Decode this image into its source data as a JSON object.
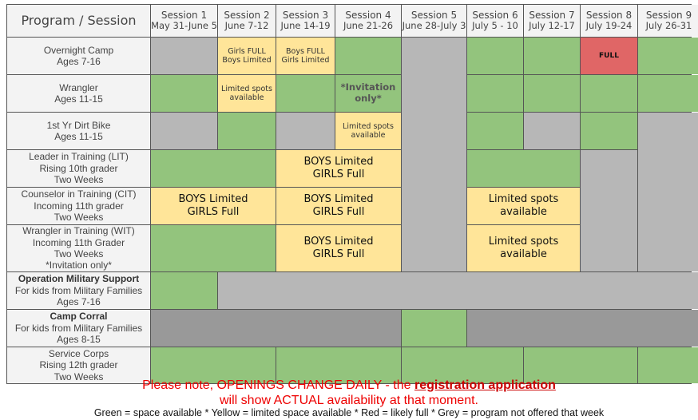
{
  "header": {
    "corner": "Program / Session",
    "sessions": [
      {
        "name": "Session 1",
        "dates": "May 31-June 5"
      },
      {
        "name": "Session 2",
        "dates": "June 7-12"
      },
      {
        "name": "Session 3",
        "dates": "June 14-19"
      },
      {
        "name": "Session 4",
        "dates": "June 21-26"
      },
      {
        "name": "Session 5",
        "dates": "June 28-July 3"
      },
      {
        "name": "Session 6",
        "dates": "July 5 - 10"
      },
      {
        "name": "Session 7",
        "dates": "July 12-17"
      },
      {
        "name": "Session 8",
        "dates": "July 19-24"
      },
      {
        "name": "Session 9",
        "dates": "July 26-31"
      }
    ]
  },
  "programs": [
    {
      "title": "Overnight Camp",
      "lines": [
        "Ages 7-16"
      ]
    },
    {
      "title": "Wrangler",
      "lines": [
        "Ages 11-15"
      ]
    },
    {
      "title": "1st Yr Dirt Bike",
      "lines": [
        "Ages 11-15"
      ]
    },
    {
      "title": "Leader in Training (LIT)",
      "lines": [
        "Rising 10th grader",
        "Two Weeks"
      ]
    },
    {
      "title": "Counselor in Training (CIT)",
      "lines": [
        "Incoming 11th grader",
        "Two Weeks"
      ]
    },
    {
      "title": "Wrangler in Training (WIT)",
      "lines": [
        "Incoming 11th Grader",
        "Two Weeks",
        "*Invitation only*"
      ]
    },
    {
      "title": "Operation Military Support",
      "bold": true,
      "lines": [
        "For kids from Military Families",
        "Ages 7-16"
      ]
    },
    {
      "title": "Camp Corral",
      "bold": true,
      "lines": [
        "For kids from Military Families",
        "Ages 8-15"
      ]
    },
    {
      "title": "Service Corps",
      "lines": [
        "Rising 12th grader",
        "Two Weeks"
      ]
    }
  ],
  "colors": {
    "green": "#93c47d",
    "yellow": "#ffe599",
    "red": "#e06666",
    "grey": "#b7b7b7",
    "dark_grey": "#999999"
  },
  "cells": [
    {
      "row": 1,
      "col": 1,
      "status": "grey"
    },
    {
      "row": 1,
      "col": 2,
      "status": "yellow",
      "style": "sm",
      "lines": [
        "Girls FULL",
        "Boys Limited"
      ]
    },
    {
      "row": 1,
      "col": 3,
      "status": "yellow",
      "style": "sm",
      "lines": [
        "Boys FULL",
        "Girls Limited"
      ]
    },
    {
      "row": 1,
      "col": 4,
      "status": "green"
    },
    {
      "row": 1,
      "col": 5,
      "rowspan": 6,
      "status": "grey"
    },
    {
      "row": 1,
      "col": 6,
      "status": "green"
    },
    {
      "row": 1,
      "col": 7,
      "status": "green"
    },
    {
      "row": 1,
      "col": 8,
      "status": "red",
      "style": "full",
      "lines": [
        "FULL"
      ]
    },
    {
      "row": 1,
      "col": 9,
      "status": "green"
    },
    {
      "row": 2,
      "col": 1,
      "status": "green"
    },
    {
      "row": 2,
      "col": 2,
      "status": "yellow",
      "style": "sm",
      "lines": [
        "Limited spots",
        "available"
      ]
    },
    {
      "row": 2,
      "col": 3,
      "status": "green"
    },
    {
      "row": 2,
      "col": 4,
      "status": "green",
      "style": "bold",
      "lines": [
        "*Invitation",
        "only*"
      ]
    },
    {
      "row": 2,
      "col": 6,
      "status": "green"
    },
    {
      "row": 2,
      "col": 7,
      "status": "green"
    },
    {
      "row": 2,
      "col": 8,
      "status": "green"
    },
    {
      "row": 2,
      "col": 9,
      "status": "green"
    },
    {
      "row": 3,
      "col": 1,
      "status": "grey"
    },
    {
      "row": 3,
      "col": 2,
      "status": "green"
    },
    {
      "row": 3,
      "col": 3,
      "status": "grey"
    },
    {
      "row": 3,
      "col": 4,
      "status": "yellow",
      "style": "sm",
      "lines": [
        "Limited spots",
        "available"
      ]
    },
    {
      "row": 3,
      "col": 6,
      "status": "green"
    },
    {
      "row": 3,
      "col": 7,
      "status": "grey"
    },
    {
      "row": 3,
      "col": 8,
      "status": "green"
    },
    {
      "row": 3,
      "col": 9,
      "rowspan": 4,
      "status": "grey"
    },
    {
      "row": 4,
      "col": 1,
      "colspan": 2,
      "status": "green"
    },
    {
      "row": 4,
      "col": 3,
      "colspan": 2,
      "status": "yellow",
      "style": "big",
      "lines": [
        "BOYS Limited",
        "GIRLS Full"
      ]
    },
    {
      "row": 4,
      "col": 6,
      "colspan": 2,
      "status": "green"
    },
    {
      "row": 4,
      "col": 8,
      "rowspan": 3,
      "status": "grey"
    },
    {
      "row": 5,
      "col": 1,
      "colspan": 2,
      "status": "yellow",
      "style": "big",
      "lines": [
        "BOYS Limited",
        "GIRLS Full"
      ]
    },
    {
      "row": 5,
      "col": 3,
      "colspan": 2,
      "status": "yellow",
      "style": "big",
      "lines": [
        "BOYS Limited",
        "GIRLS Full"
      ]
    },
    {
      "row": 5,
      "col": 6,
      "colspan": 2,
      "status": "yellow",
      "style": "big",
      "lines": [
        "Limited spots",
        "available"
      ]
    },
    {
      "row": 6,
      "col": 1,
      "colspan": 2,
      "status": "green"
    },
    {
      "row": 6,
      "col": 3,
      "colspan": 2,
      "status": "yellow",
      "style": "big",
      "lines": [
        "BOYS Limited",
        "GIRLS Full"
      ]
    },
    {
      "row": 6,
      "col": 6,
      "colspan": 2,
      "status": "yellow",
      "style": "big",
      "lines": [
        "Limited spots",
        "available"
      ]
    },
    {
      "row": 7,
      "col": 1,
      "status": "green"
    },
    {
      "row": 7,
      "col": 2,
      "colspan": 8,
      "status": "grey"
    },
    {
      "row": 8,
      "col": 1,
      "colspan": 4,
      "status": "dgrey"
    },
    {
      "row": 8,
      "col": 5,
      "status": "green"
    },
    {
      "row": 8,
      "col": 6,
      "colspan": 4,
      "status": "dgrey"
    },
    {
      "row": 9,
      "col": 1,
      "colspan": 2,
      "status": "green"
    },
    {
      "row": 9,
      "col": 3,
      "colspan": 2,
      "status": "green"
    },
    {
      "row": 9,
      "col": 5,
      "colspan": 2,
      "status": "green"
    },
    {
      "row": 9,
      "col": 7,
      "colspan": 2,
      "status": "green"
    },
    {
      "row": 9,
      "col": 9,
      "status": "green"
    }
  ],
  "notice": {
    "prefix": "Please note, OPENINGS CHANGE DAILY - the ",
    "link": "registration application",
    "line2": "will show ACTUAL availability at that moment."
  },
  "legend": "Green = space available  *  Yellow = limited space available  *  Red = likely full  *  Grey = program not offered that week"
}
